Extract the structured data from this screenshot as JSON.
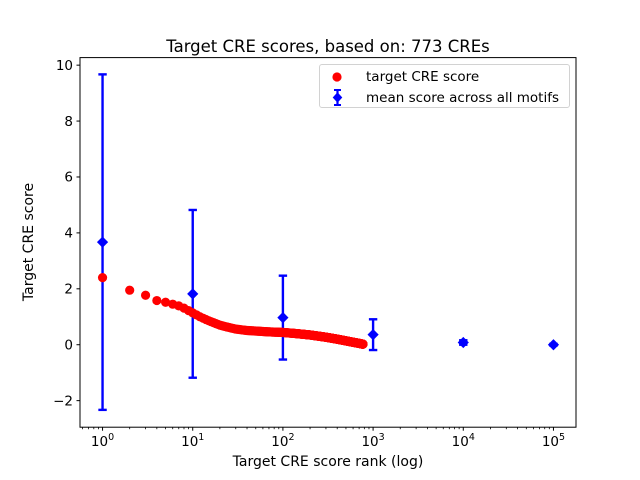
{
  "chart_data": {
    "type": "scatter",
    "title": "Target CRE scores, based on: 773 CREs",
    "xlabel": "Target CRE score rank (log)",
    "ylabel": "Target CRE score",
    "x_scale": "log",
    "xlim_log10": [
      -0.25,
      5.25
    ],
    "ylim": [
      -2.95,
      10.27
    ],
    "grid": false,
    "x_major_ticks": [
      1,
      10,
      100,
      1000,
      10000,
      100000
    ],
    "x_tick_base": "10",
    "x_tick_exponents": [
      "0",
      "1",
      "2",
      "3",
      "4",
      "5"
    ],
    "y_ticks": [
      -2,
      0,
      2,
      4,
      6,
      8,
      10
    ],
    "y_tick_labels": [
      "−2",
      "0",
      "2",
      "4",
      "6",
      "8",
      "10"
    ],
    "legend_position": "upper right",
    "series": [
      {
        "name": "target CRE score",
        "marker": "circle",
        "color": "#ff0000",
        "n_points": 773,
        "anchor_points": [
          [
            1,
            2.4
          ],
          [
            2,
            1.95
          ],
          [
            3,
            1.77
          ],
          [
            4,
            1.58
          ],
          [
            5,
            1.52
          ],
          [
            6,
            1.45
          ],
          [
            7,
            1.39
          ],
          [
            8,
            1.31
          ],
          [
            9,
            1.22
          ],
          [
            10,
            1.14
          ],
          [
            12,
            1.0
          ],
          [
            15,
            0.86
          ],
          [
            20,
            0.7
          ],
          [
            25,
            0.62
          ],
          [
            30,
            0.56
          ],
          [
            40,
            0.51
          ],
          [
            50,
            0.49
          ],
          [
            70,
            0.46
          ],
          [
            100,
            0.44
          ],
          [
            140,
            0.4
          ],
          [
            200,
            0.35
          ],
          [
            300,
            0.27
          ],
          [
            400,
            0.2
          ],
          [
            500,
            0.14
          ],
          [
            600,
            0.09
          ],
          [
            700,
            0.05
          ],
          [
            773,
            0.02
          ]
        ]
      },
      {
        "name": "mean score across all motifs",
        "marker": "diamond",
        "color": "#0000ff",
        "points": [
          {
            "x": 1,
            "y": 3.67,
            "err": 6.0
          },
          {
            "x": 10,
            "y": 1.82,
            "err": 3.0
          },
          {
            "x": 100,
            "y": 0.97,
            "err": 1.5
          },
          {
            "x": 1000,
            "y": 0.36,
            "err": 0.55
          },
          {
            "x": 10000,
            "y": 0.08,
            "err": 0.08
          },
          {
            "x": 100000,
            "y": 0.0,
            "err": 0.03
          }
        ]
      }
    ]
  }
}
